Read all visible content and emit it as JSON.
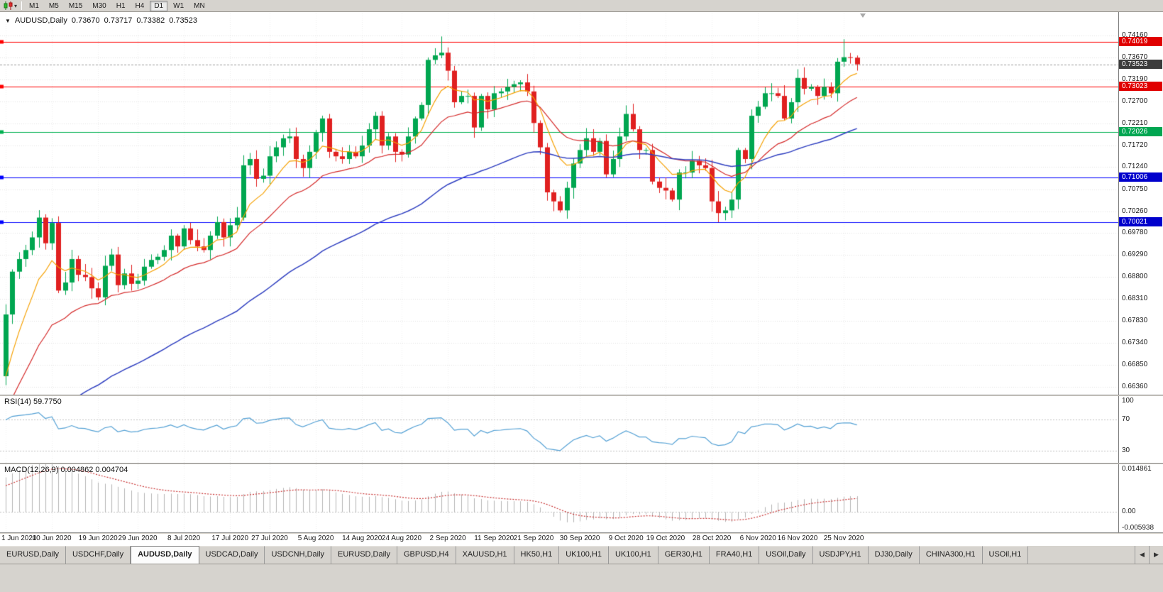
{
  "toolbar": {
    "chart_icon": "candlestick-chart-icon",
    "dropdown_glyph": "▾",
    "timeframes": [
      "M1",
      "M5",
      "M15",
      "M30",
      "H1",
      "H4",
      "D1",
      "W1",
      "MN"
    ],
    "active_timeframe": "D1"
  },
  "chart_header": {
    "collapse_glyph": "▼",
    "symbol_period": "AUDUSD,Daily",
    "open": "0.73670",
    "high": "0.73717",
    "low": "0.73382",
    "close": "0.73523"
  },
  "price_axis": {
    "labels": [
      "0.74160",
      "0.73670",
      "0.73190",
      "0.72700",
      "0.72210",
      "0.71720",
      "0.71240",
      "0.70750",
      "0.70260",
      "0.69780",
      "0.69290",
      "0.68800",
      "0.68310",
      "0.67830",
      "0.67340",
      "0.66850",
      "0.66360"
    ],
    "badges": [
      {
        "value": "0.74019",
        "color": "#e00000",
        "type": "resistance-line-price"
      },
      {
        "value": "0.73523",
        "color": "#3c3c3c",
        "type": "current-price"
      },
      {
        "value": "0.73023",
        "color": "#e00000",
        "type": "resistance-line-price"
      },
      {
        "value": "0.72026",
        "color": "#00a651",
        "type": "pivot-line-price"
      },
      {
        "value": "0.71006",
        "color": "#0000cc",
        "type": "support-line-price"
      },
      {
        "value": "0.70021",
        "color": "#0000cc",
        "type": "support-line-price"
      }
    ]
  },
  "rsi_panel": {
    "label": "RSI(14) 59.7750",
    "levels": [
      "100",
      "70",
      "30"
    ],
    "line_color": "#53a0d4"
  },
  "macd_panel": {
    "label": "MACD(12,26,9) 0.004862 0.004704",
    "axis_labels": [
      "0.014861",
      "0.00",
      "-0.005938"
    ],
    "histogram_color": "#b4b4b4",
    "signal_color": "#c83232"
  },
  "colors": {
    "bull": "#00a650",
    "bear": "#e02020",
    "ma_fast": "#f5a000",
    "ma_mid": "#d42828",
    "ma_slow": "#2f3fc0",
    "grid": "#e2e2e2",
    "vgrid": "#ececec"
  },
  "hlines": [
    {
      "price": 0.74019,
      "color": "#ff0000"
    },
    {
      "price": 0.73023,
      "color": "#ff0000"
    },
    {
      "price": 0.72026,
      "color": "#00b050"
    },
    {
      "price": 0.71006,
      "color": "#0000ff"
    },
    {
      "price": 0.70021,
      "color": "#0000ff"
    }
  ],
  "current_price": 0.73523,
  "chart_data": {
    "type": "candlestick",
    "symbol": "AUDUSD",
    "timeframe": "Daily",
    "price_range": [
      0.6619,
      0.7465
    ],
    "rsi_range": [
      15,
      100
    ],
    "macd_range": [
      -0.0068,
      0.0158
    ],
    "first_open": 0.666,
    "closes": [
      0.6797,
      0.6892,
      0.692,
      0.694,
      0.6968,
      0.7012,
      0.6955,
      0.7,
      0.685,
      0.6868,
      0.692,
      0.6885,
      0.688,
      0.6855,
      0.6835,
      0.6905,
      0.693,
      0.6862,
      0.6888,
      0.6865,
      0.6872,
      0.6903,
      0.6918,
      0.6925,
      0.694,
      0.6972,
      0.6948,
      0.6988,
      0.6962,
      0.6948,
      0.694,
      0.6972,
      0.7002,
      0.6968,
      0.6995,
      0.7012,
      0.7128,
      0.7142,
      0.7098,
      0.7105,
      0.7148,
      0.7168,
      0.7188,
      0.7192,
      0.7142,
      0.7122,
      0.7158,
      0.72,
      0.7232,
      0.7158,
      0.7148,
      0.7142,
      0.7158,
      0.7148,
      0.7172,
      0.7208,
      0.7238,
      0.7172,
      0.7192,
      0.7158,
      0.7152,
      0.7192,
      0.7232,
      0.7262,
      0.7362,
      0.7372,
      0.7378,
      0.7338,
      0.7268,
      0.7282,
      0.7282,
      0.7212,
      0.7282,
      0.7252,
      0.7288,
      0.7292,
      0.7302,
      0.7308,
      0.7312,
      0.7292,
      0.7222,
      0.7168,
      0.7068,
      0.7048,
      0.7028,
      0.7078,
      0.7132,
      0.7162,
      0.7188,
      0.7158,
      0.7182,
      0.7108,
      0.7142,
      0.7192,
      0.7242,
      0.7208,
      0.7162,
      0.7162,
      0.7092,
      0.7078,
      0.7072,
      0.7052,
      0.7112,
      0.7112,
      0.7138,
      0.7128,
      0.7122,
      0.7048,
      0.7022,
      0.7028,
      0.7052,
      0.7162,
      0.7142,
      0.7238,
      0.7258,
      0.7288,
      0.7288,
      0.7282,
      0.7232,
      0.7268,
      0.7322,
      0.7298,
      0.7302,
      0.7282,
      0.7302,
      0.7288,
      0.7358,
      0.7368,
      0.7367,
      0.73523
    ],
    "overrides": {
      "0": {
        "l": 0.664
      },
      "66": {
        "h": 0.7414
      },
      "127": {
        "h": 0.7408
      },
      "129": {
        "h": 0.73717,
        "l": 0.73382
      }
    },
    "indicator_seeds": {
      "ema8": 0.662,
      "ema20": 0.656,
      "ema55": 0.645,
      "ema12": 0.6585,
      "ema26": 0.648,
      "signal": 0.008,
      "rsi_avg_gain": 0.003,
      "rsi_avg_loss": 0.0013
    },
    "ticks": [
      [
        0,
        "1 Jun 2020"
      ],
      [
        7,
        "10 Jun 2020"
      ],
      [
        14,
        "19 Jun 2020"
      ],
      [
        20,
        "29 Jun 2020"
      ],
      [
        27,
        "8 Jul 2020"
      ],
      [
        34,
        "17 Jul 2020"
      ],
      [
        40,
        "27 Jul 2020"
      ],
      [
        47,
        "5 Aug 2020"
      ],
      [
        54,
        "14 Aug 2020"
      ],
      [
        60,
        "24 Aug 2020"
      ],
      [
        67,
        "2 Sep 2020"
      ],
      [
        74,
        "11 Sep 2020"
      ],
      [
        80,
        "21 Sep 2020"
      ],
      [
        87,
        "30 Sep 2020"
      ],
      [
        94,
        "9 Oct 2020"
      ],
      [
        100,
        "19 Oct 2020"
      ],
      [
        107,
        "28 Oct 2020"
      ],
      [
        114,
        "6 Nov 2020"
      ],
      [
        120,
        "16 Nov 2020"
      ],
      [
        127,
        "25 Nov 2020"
      ]
    ]
  },
  "tabs": {
    "items": [
      "EURUSD,Daily",
      "USDCHF,Daily",
      "AUDUSD,Daily",
      "USDCAD,Daily",
      "USDCNH,Daily",
      "EURUSD,Daily",
      "GBPUSD,H4",
      "XAUUSD,H1",
      "HK50,H1",
      "UK100,H1",
      "UK100,H1",
      "GER30,H1",
      "FRA40,H1",
      "USOil,Daily",
      "USDJPY,H1",
      "DJ30,Daily",
      "CHINA300,H1",
      "USOil,H1"
    ],
    "active_index": 2,
    "scroll_left_glyph": "◀",
    "scroll_right_glyph": "▶"
  }
}
